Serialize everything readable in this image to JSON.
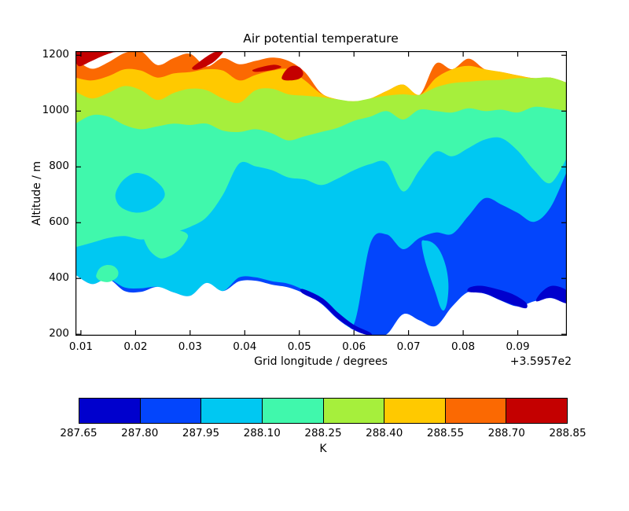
{
  "chart_data": {
    "type": "filled_contour",
    "title": "Air potential temperature",
    "xlabel": "Grid longitude / degrees",
    "ylabel": "Altitude / m",
    "x_offset_text": "+3.5957e2",
    "xlim": [
      0.009,
      0.099
    ],
    "ylim": [
      195,
      1215
    ],
    "xticks": [
      0.01,
      0.02,
      0.03,
      0.04,
      0.05,
      0.06,
      0.07,
      0.08,
      0.09
    ],
    "xtick_labels": [
      "0.01",
      "0.02",
      "0.03",
      "0.04",
      "0.05",
      "0.06",
      "0.07",
      "0.08",
      "0.09"
    ],
    "yticks": [
      200,
      400,
      600,
      800,
      1000,
      1200
    ],
    "ytick_labels": [
      "200",
      "400",
      "600",
      "800",
      "1000",
      "1200"
    ],
    "grid": false,
    "colorbar": {
      "orientation": "horizontal",
      "levels": [
        287.65,
        287.8,
        287.95,
        288.1,
        288.25,
        288.4,
        288.55,
        288.7,
        288.85
      ],
      "labels": [
        "287.65",
        "287.80",
        "287.95",
        "288.10",
        "288.25",
        "288.40",
        "288.55",
        "288.70",
        "288.85"
      ],
      "unit": "K"
    },
    "band_colors": [
      "#0000cd",
      "#0345fc",
      "#00c8f2",
      "#40f8ac",
      "#a6ef3c",
      "#ffc900",
      "#fb6902",
      "#c40000"
    ],
    "band_names": [
      "dark-blue 287.65-287.80",
      "blue 287.80-287.95",
      "cyan 287.95-288.10",
      "turquoise 288.10-288.25",
      "yellow-green 288.25-288.40",
      "gold 288.40-288.55",
      "orange 288.55-288.70",
      "dark-red 288.70-288.85"
    ],
    "x_samples": [
      0.009,
      0.012,
      0.015,
      0.018,
      0.021,
      0.024,
      0.027,
      0.03,
      0.033,
      0.036,
      0.039,
      0.042,
      0.045,
      0.048,
      0.051,
      0.054,
      0.057,
      0.06,
      0.063,
      0.066,
      0.069,
      0.072,
      0.075,
      0.078,
      0.081,
      0.084,
      0.087,
      0.09,
      0.093,
      0.096,
      0.099
    ],
    "layers": [
      {
        "name": "orange-band",
        "color_index": 6,
        "top": [
          1185,
          1152,
          1175,
          1208,
          1214,
          1165,
          1190,
          1205,
          1160,
          1190,
          1168,
          1180,
          1192,
          1180,
          1140,
          1065,
          1042,
          1035,
          1045,
          1072,
          1095,
          1058,
          1170,
          1150,
          1188,
          1150,
          1140,
          1128,
          1118,
          1120,
          1102
        ]
      },
      {
        "name": "gold-band",
        "color_index": 5,
        "top": [
          1120,
          1110,
          1125,
          1150,
          1145,
          1120,
          1135,
          1140,
          1150,
          1145,
          1110,
          1130,
          1145,
          1150,
          1110,
          1062,
          1042,
          1035,
          1045,
          1072,
          1095,
          1058,
          1118,
          1150,
          1162,
          1150,
          1140,
          1128,
          1118,
          1120,
          1102
        ]
      },
      {
        "name": "yellow-green-band",
        "color_index": 4,
        "top": [
          1070,
          1045,
          1065,
          1090,
          1075,
          1040,
          1065,
          1080,
          1075,
          1045,
          1030,
          1075,
          1080,
          1060,
          1055,
          1050,
          1042,
          1035,
          1045,
          1055,
          1060,
          1058,
          1085,
          1100,
          1105,
          1110,
          1112,
          1118,
          1118,
          1120,
          1102
        ]
      },
      {
        "name": "turquoise-band",
        "color_index": 3,
        "top": [
          955,
          985,
          980,
          950,
          935,
          945,
          955,
          950,
          955,
          930,
          925,
          935,
          920,
          895,
          910,
          925,
          940,
          965,
          980,
          1000,
          970,
          1005,
          1000,
          995,
          1010,
          1000,
          1005,
          995,
          1015,
          1010,
          1000
        ]
      },
      {
        "name": "cyan-band",
        "color_index": 2,
        "top": [
          512,
          528,
          545,
          552,
          540,
          550,
          565,
          585,
          620,
          700,
          812,
          802,
          788,
          762,
          755,
          735,
          758,
          788,
          810,
          815,
          712,
          788,
          855,
          838,
          868,
          898,
          903,
          858,
          788,
          742,
          832
        ]
      },
      {
        "name": "blue-band",
        "color_index": 1,
        "top": [
          413,
          380,
          398,
          368,
          365,
          370,
          350,
          338,
          384,
          355,
          404,
          404,
          390,
          381,
          357,
          324,
          273,
          237,
          525,
          558,
          505,
          545,
          565,
          560,
          625,
          688,
          665,
          635,
          603,
          655,
          783
        ]
      }
    ],
    "bottom_white_top": [
      413,
      380,
      398,
      355,
      352,
      370,
      350,
      338,
      384,
      355,
      390,
      392,
      378,
      368,
      345,
      310,
      255,
      215,
      196,
      200,
      272,
      250,
      230,
      300,
      352,
      345,
      320,
      300,
      318,
      330,
      312
    ],
    "patches": [
      {
        "name": "red-patch-topleft",
        "color_index": 7,
        "points": [
          [
            0.0095,
            1162
          ],
          [
            0.0118,
            1178
          ],
          [
            0.0138,
            1196
          ],
          [
            0.0158,
            1210
          ],
          [
            0.017,
            1215
          ],
          [
            0.0095,
            1215
          ]
        ]
      },
      {
        "name": "red-patch-2",
        "color_index": 7,
        "points": [
          [
            0.0304,
            1156
          ],
          [
            0.0318,
            1178
          ],
          [
            0.0334,
            1200
          ],
          [
            0.0346,
            1212
          ],
          [
            0.036,
            1213
          ],
          [
            0.0354,
            1196
          ],
          [
            0.034,
            1172
          ],
          [
            0.0322,
            1154
          ],
          [
            0.0308,
            1148
          ]
        ]
      },
      {
        "name": "red-patch-3",
        "color_index": 7,
        "points": [
          [
            0.0415,
            1148
          ],
          [
            0.0435,
            1160
          ],
          [
            0.0455,
            1166
          ],
          [
            0.0467,
            1158
          ],
          [
            0.0452,
            1148
          ],
          [
            0.0432,
            1142
          ],
          [
            0.0418,
            1141
          ]
        ]
      },
      {
        "name": "red-patch-4",
        "color_index": 7,
        "points": [
          [
            0.0468,
            1122
          ],
          [
            0.0476,
            1148
          ],
          [
            0.0488,
            1162
          ],
          [
            0.0501,
            1156
          ],
          [
            0.0507,
            1134
          ],
          [
            0.05,
            1116
          ],
          [
            0.0484,
            1110
          ],
          [
            0.0471,
            1112
          ]
        ]
      },
      {
        "name": "turquoise-blob-bottomleft",
        "color_index": 3,
        "points": [
          [
            0.0128,
            412
          ],
          [
            0.0134,
            436
          ],
          [
            0.0146,
            448
          ],
          [
            0.016,
            444
          ],
          [
            0.0168,
            426
          ],
          [
            0.0166,
            404
          ],
          [
            0.0152,
            388
          ],
          [
            0.0138,
            390
          ],
          [
            0.013,
            400
          ]
        ]
      },
      {
        "name": "turquoise-tongue",
        "color_index": 3,
        "points": [
          [
            0.0214,
            550
          ],
          [
            0.0222,
            512
          ],
          [
            0.0232,
            488
          ],
          [
            0.0246,
            472
          ],
          [
            0.0262,
            480
          ],
          [
            0.0277,
            498
          ],
          [
            0.0289,
            524
          ],
          [
            0.0296,
            554
          ],
          [
            0.0284,
            570
          ],
          [
            0.0258,
            574
          ],
          [
            0.0232,
            568
          ],
          [
            0.0218,
            560
          ]
        ]
      },
      {
        "name": "cyan-island",
        "color_index": 2,
        "points": [
          [
            0.0163,
            698
          ],
          [
            0.017,
            734
          ],
          [
            0.0183,
            762
          ],
          [
            0.02,
            778
          ],
          [
            0.0221,
            770
          ],
          [
            0.0239,
            746
          ],
          [
            0.0251,
            720
          ],
          [
            0.0253,
            694
          ],
          [
            0.0242,
            666
          ],
          [
            0.0224,
            644
          ],
          [
            0.0203,
            636
          ],
          [
            0.0184,
            644
          ],
          [
            0.0169,
            664
          ]
        ]
      },
      {
        "name": "cyan-finger",
        "color_index": 2,
        "points": [
          [
            0.0724,
            530
          ],
          [
            0.0729,
            472
          ],
          [
            0.0738,
            414
          ],
          [
            0.0749,
            352
          ],
          [
            0.0758,
            298
          ],
          [
            0.0765,
            286
          ],
          [
            0.0771,
            318
          ],
          [
            0.0773,
            382
          ],
          [
            0.0768,
            446
          ],
          [
            0.0757,
            500
          ],
          [
            0.0744,
            528
          ],
          [
            0.0731,
            536
          ]
        ]
      },
      {
        "name": "navy-sliver-bottom",
        "color_index": 0,
        "points": [
          [
            0.0505,
            348
          ],
          [
            0.054,
            312
          ],
          [
            0.057,
            257
          ],
          [
            0.06,
            216
          ],
          [
            0.0628,
            196
          ],
          [
            0.063,
            206
          ],
          [
            0.06,
            234
          ],
          [
            0.0572,
            276
          ],
          [
            0.0542,
            330
          ],
          [
            0.0507,
            362
          ]
        ]
      },
      {
        "name": "navy-band-right",
        "color_index": 0,
        "points": [
          [
            0.081,
            352
          ],
          [
            0.084,
            346
          ],
          [
            0.087,
            321
          ],
          [
            0.09,
            300
          ],
          [
            0.0916,
            294
          ],
          [
            0.0914,
            316
          ],
          [
            0.0888,
            346
          ],
          [
            0.0858,
            364
          ],
          [
            0.0832,
            374
          ],
          [
            0.0812,
            368
          ]
        ]
      },
      {
        "name": "navy-wedge-corner",
        "color_index": 0,
        "points": [
          [
            0.0934,
            318
          ],
          [
            0.096,
            331
          ],
          [
            0.099,
            312
          ],
          [
            0.099,
            356
          ],
          [
            0.0964,
            374
          ],
          [
            0.0944,
            352
          ]
        ]
      }
    ]
  }
}
